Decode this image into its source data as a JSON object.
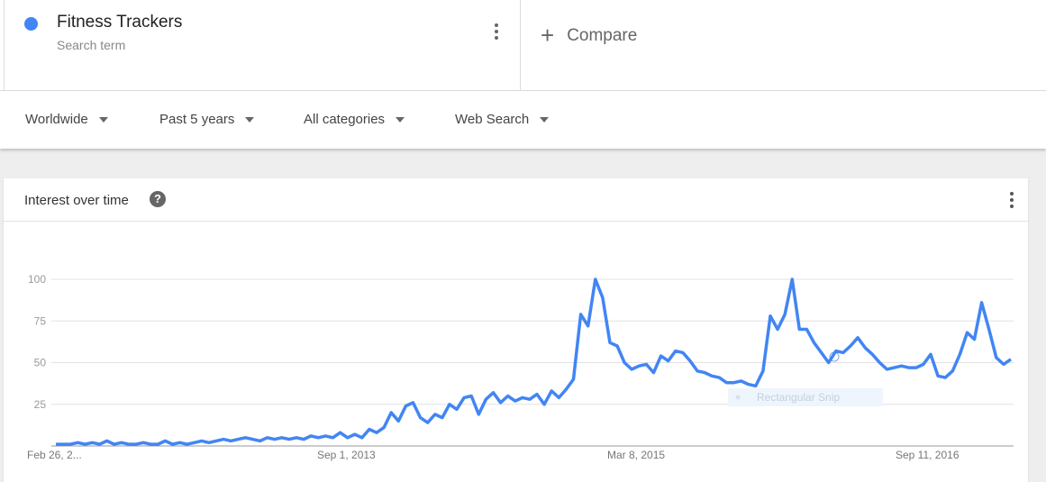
{
  "search_term": {
    "title": "Fitness Trackers",
    "subtitle": "Search term",
    "color": "#4285f4",
    "menu_icon": "more-vert-icon"
  },
  "compare": {
    "icon": "plus-icon",
    "label": "Compare"
  },
  "filters": [
    {
      "label": "Worldwide"
    },
    {
      "label": "Past 5 years"
    },
    {
      "label": "All categories"
    },
    {
      "label": "Web Search"
    }
  ],
  "card": {
    "title": "Interest over time",
    "help_icon": "?",
    "menu_icon": "more-vert-icon"
  },
  "overlay": {
    "label": "Rectangular Snip"
  },
  "chart_data": {
    "type": "line",
    "title": "",
    "xlabel": "",
    "ylabel": "",
    "ylim": [
      0,
      100
    ],
    "y_ticks": [
      "25",
      "50",
      "75",
      "100"
    ],
    "x_ticks": [
      "Feb 26, 2...",
      "Sep 1, 2013",
      "Mar 8, 2015",
      "Sep 11, 2016"
    ],
    "grid": true,
    "line_color": "#4285f4",
    "series": [
      {
        "values": [
          1,
          1,
          1,
          2,
          1,
          2,
          1,
          3,
          1,
          2,
          1,
          1,
          2,
          1,
          1,
          3,
          1,
          2,
          1,
          2,
          3,
          2,
          3,
          4,
          3,
          4,
          5,
          4,
          3,
          5,
          4,
          5,
          4,
          5,
          4,
          6,
          5,
          6,
          5,
          8,
          5,
          7,
          5,
          10,
          8,
          11,
          20,
          15,
          24,
          26,
          17,
          14,
          19,
          17,
          25,
          22,
          29,
          30,
          19,
          28,
          32,
          26,
          30,
          27,
          29,
          28,
          31,
          25,
          33,
          29,
          34,
          40,
          79,
          72,
          100,
          89,
          62,
          60,
          50,
          46,
          48,
          49,
          44,
          54,
          51,
          57,
          56,
          51,
          45,
          44,
          42,
          41,
          38,
          38,
          39,
          37,
          36,
          45,
          78,
          70,
          79,
          100,
          70,
          70,
          62,
          56,
          50,
          57,
          56,
          60,
          65,
          59,
          55,
          50,
          46,
          47,
          48,
          47,
          47,
          49,
          55,
          42,
          41,
          45,
          55,
          68,
          64,
          86,
          70,
          53,
          49,
          52
        ]
      }
    ]
  }
}
